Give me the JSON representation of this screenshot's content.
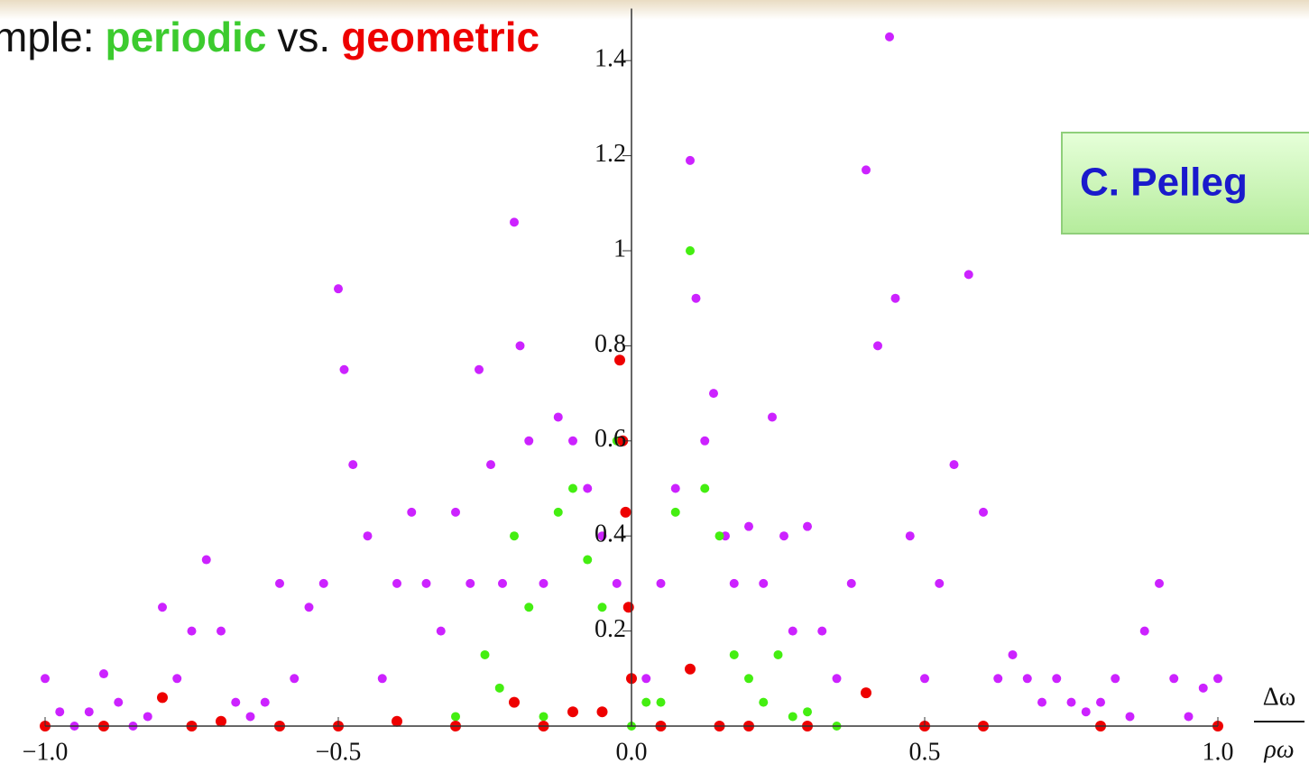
{
  "chart_data": {
    "type": "scatter",
    "title_parts": [
      "mple:",
      "periodic",
      "vs.",
      "geometric"
    ],
    "title_colors": [
      "#111111",
      "#3ccb2e",
      "#111111",
      "#ee0000"
    ],
    "annotation": "C. Pelleg",
    "x_label_numerator": "Δω",
    "x_label_denominator": "ρω",
    "xlim": [
      -1,
      1
    ],
    "ylim": [
      0,
      1.5
    ],
    "xticks": [
      {
        "value": -1,
        "label": "−1.0"
      },
      {
        "value": -0.5,
        "label": "−0.5"
      },
      {
        "value": 0,
        "label": "0.0"
      },
      {
        "value": 0.5,
        "label": "0.5"
      },
      {
        "value": 1,
        "label": "1.0"
      }
    ],
    "yticks": [
      0.2,
      0.4,
      0.6,
      0.8,
      1.0,
      1.2,
      1.4
    ],
    "series": [
      {
        "color": "#cc22ff",
        "x": [
          -1.0,
          -0.975,
          -0.95,
          -0.925,
          -0.9,
          -0.875,
          -0.85,
          -0.825,
          -0.8,
          -0.775,
          -0.75,
          -0.725,
          -0.7,
          -0.675,
          -0.65,
          -0.625,
          -0.6,
          -0.575,
          -0.55,
          -0.525,
          -0.5,
          -0.49,
          -0.475,
          -0.45,
          -0.425,
          -0.4,
          -0.375,
          -0.35,
          -0.325,
          -0.3,
          -0.275,
          -0.26,
          -0.24,
          -0.22,
          -0.2,
          -0.19,
          -0.175,
          -0.15,
          -0.125,
          -0.1,
          -0.075,
          -0.05,
          -0.025,
          0.025,
          0.05,
          0.075,
          0.1,
          0.11,
          0.125,
          0.14,
          0.16,
          0.175,
          0.2,
          0.225,
          0.24,
          0.26,
          0.275,
          0.3,
          0.325,
          0.35,
          0.375,
          0.4,
          0.42,
          0.44,
          0.45,
          0.475,
          0.5,
          0.525,
          0.55,
          0.575,
          0.6,
          0.625,
          0.65,
          0.675,
          0.7,
          0.725,
          0.75,
          0.775,
          0.8,
          0.825,
          0.85,
          0.875,
          0.9,
          0.925,
          0.95,
          0.975,
          1.0
        ],
        "values": [
          0.1,
          0.03,
          0.0,
          0.03,
          0.11,
          0.05,
          0.0,
          0.02,
          0.25,
          0.1,
          0.2,
          0.35,
          0.2,
          0.05,
          0.02,
          0.05,
          0.3,
          0.1,
          0.25,
          0.3,
          0.92,
          0.75,
          0.55,
          0.4,
          0.1,
          0.3,
          0.45,
          0.3,
          0.2,
          0.45,
          0.3,
          0.75,
          0.55,
          0.3,
          1.06,
          0.8,
          0.6,
          0.3,
          0.65,
          0.6,
          0.5,
          0.4,
          0.3,
          0.1,
          0.3,
          0.5,
          1.19,
          0.9,
          0.6,
          0.7,
          0.4,
          0.3,
          0.42,
          0.3,
          0.65,
          0.4,
          0.2,
          0.42,
          0.2,
          0.1,
          0.3,
          1.17,
          0.8,
          1.45,
          0.9,
          0.4,
          0.1,
          0.3,
          0.55,
          0.95,
          0.45,
          0.1,
          0.15,
          0.1,
          0.05,
          0.1,
          0.05,
          0.03,
          0.05,
          0.1,
          0.02,
          0.2,
          0.3,
          0.1,
          0.02,
          0.08,
          0.1
        ]
      },
      {
        "color": "#44ee11",
        "x": [
          -1.0,
          -0.5,
          -0.3,
          -0.25,
          -0.225,
          -0.2,
          -0.175,
          -0.15,
          -0.125,
          -0.1,
          -0.075,
          -0.05,
          -0.025,
          0.0,
          0.025,
          0.05,
          0.075,
          0.1,
          0.125,
          0.15,
          0.175,
          0.2,
          0.225,
          0.25,
          0.275,
          0.3,
          0.35,
          0.5,
          1.0
        ],
        "values": [
          0.0,
          0.0,
          0.02,
          0.15,
          0.08,
          0.4,
          0.25,
          0.02,
          0.45,
          0.5,
          0.35,
          0.25,
          0.6,
          0.0,
          0.05,
          0.05,
          0.45,
          1.0,
          0.5,
          0.4,
          0.15,
          0.1,
          0.05,
          0.15,
          0.02,
          0.03,
          0.0,
          0.0,
          0.0
        ]
      },
      {
        "color": "#ee0000",
        "x": [
          -1.0,
          -0.9,
          -0.8,
          -0.75,
          -0.7,
          -0.6,
          -0.5,
          -0.4,
          -0.3,
          -0.2,
          -0.15,
          -0.1,
          -0.05,
          -0.02,
          -0.015,
          -0.01,
          -0.005,
          0.0,
          0.05,
          0.1,
          0.15,
          0.2,
          0.3,
          0.4,
          0.5,
          0.6,
          0.8,
          1.0
        ],
        "values": [
          0.0,
          0.0,
          0.06,
          0.0,
          0.01,
          0.0,
          0.0,
          0.01,
          0.0,
          0.05,
          0.0,
          0.03,
          0.03,
          0.77,
          0.6,
          0.45,
          0.25,
          0.1,
          0.0,
          0.12,
          0.0,
          0.0,
          0.0,
          0.07,
          0.0,
          0.0,
          0.0,
          0.0
        ]
      }
    ]
  }
}
